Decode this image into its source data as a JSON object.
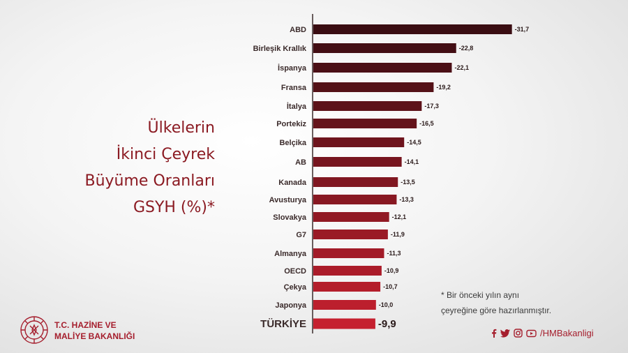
{
  "colors": {
    "title": "#8b1a22",
    "brand": "#a51e2d",
    "bar_dark": "#3a0d12",
    "bar_light": "#c5202f",
    "highlight_text": "#b01d2c"
  },
  "title_lines": [
    "Ülkelerin",
    "İkinci Çeyrek",
    "Büyüme Oranları",
    "GSYH (%)*"
  ],
  "footnote_lines": [
    "* Bir önceki yılın aynı",
    "çeyreğine göre hazırlanmıştır."
  ],
  "ministry_lines": [
    "T.C. HAZİNE VE",
    "MALİYE BAKANLIĞI"
  ],
  "social": {
    "icons": [
      "facebook-icon",
      "twitter-icon",
      "instagram-icon",
      "youtube-icon"
    ],
    "handle": "/HMBakanligi"
  },
  "chart_data": {
    "type": "bar",
    "orientation": "horizontal",
    "categories": [
      "ABD",
      "Birleşik Krallık",
      "İspanya",
      "Fransa",
      "İtalya",
      "Portekiz",
      "Belçika",
      "AB",
      "Kanada",
      "Avusturya",
      "Slovakya",
      "G7",
      "Almanya",
      "OECD",
      "Çekya",
      "Japonya",
      "TÜRKİYE"
    ],
    "values": [
      -31.7,
      -22.8,
      -22.1,
      -19.2,
      -17.3,
      -16.5,
      -14.5,
      -14.1,
      -13.5,
      -13.3,
      -12.1,
      -11.9,
      -11.3,
      -10.9,
      -10.7,
      -10.0,
      -9.9
    ],
    "value_labels": [
      "-31,7",
      "-22,8",
      "-22,1",
      "-19,2",
      "-17,3",
      "-16,5",
      "-14,5",
      "-14,1",
      "-13,5",
      "-13,3",
      "-12,1",
      "-11,9",
      "-11,3",
      "-10,9",
      "-10,7",
      "-10,0",
      "-9,9"
    ],
    "highlight": "TÜRKİYE",
    "title": "Ülkelerin İkinci Çeyrek Büyüme Oranları GSYH (%)*",
    "xlabel": "",
    "ylabel": "",
    "grid": false
  }
}
